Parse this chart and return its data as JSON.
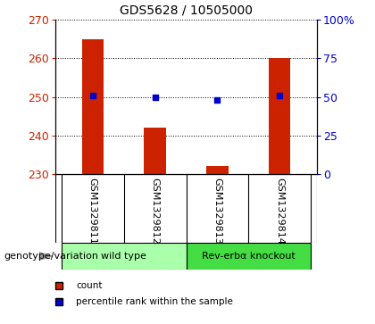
{
  "title": "GDS5628 / 10505000",
  "samples": [
    "GSM1329811",
    "GSM1329812",
    "GSM1329813",
    "GSM1329814"
  ],
  "counts": [
    265,
    242,
    232,
    260
  ],
  "percentiles": [
    51,
    50,
    48,
    51
  ],
  "ylim_left": [
    230,
    270
  ],
  "ylim_right": [
    0,
    100
  ],
  "yticks_left": [
    230,
    240,
    250,
    260,
    270
  ],
  "yticks_right": [
    0,
    25,
    50,
    75,
    100
  ],
  "ytick_labels_right": [
    "0",
    "25",
    "50",
    "75",
    "100%"
  ],
  "bar_color": "#cc2200",
  "dot_color": "#0000cc",
  "grid_color": "#000000",
  "groups": [
    {
      "label": "wild type",
      "indices": [
        0,
        1
      ],
      "color": "#aaffaa"
    },
    {
      "label": "Rev-erbα knockout",
      "indices": [
        2,
        3
      ],
      "color": "#44dd44"
    }
  ],
  "group_label": "genotype/variation",
  "legend_items": [
    {
      "color": "#cc2200",
      "label": "count"
    },
    {
      "color": "#0000cc",
      "label": "percentile rank within the sample"
    }
  ],
  "bar_width": 0.35,
  "background_color": "#ffffff",
  "tick_area_bg": "#cccccc"
}
